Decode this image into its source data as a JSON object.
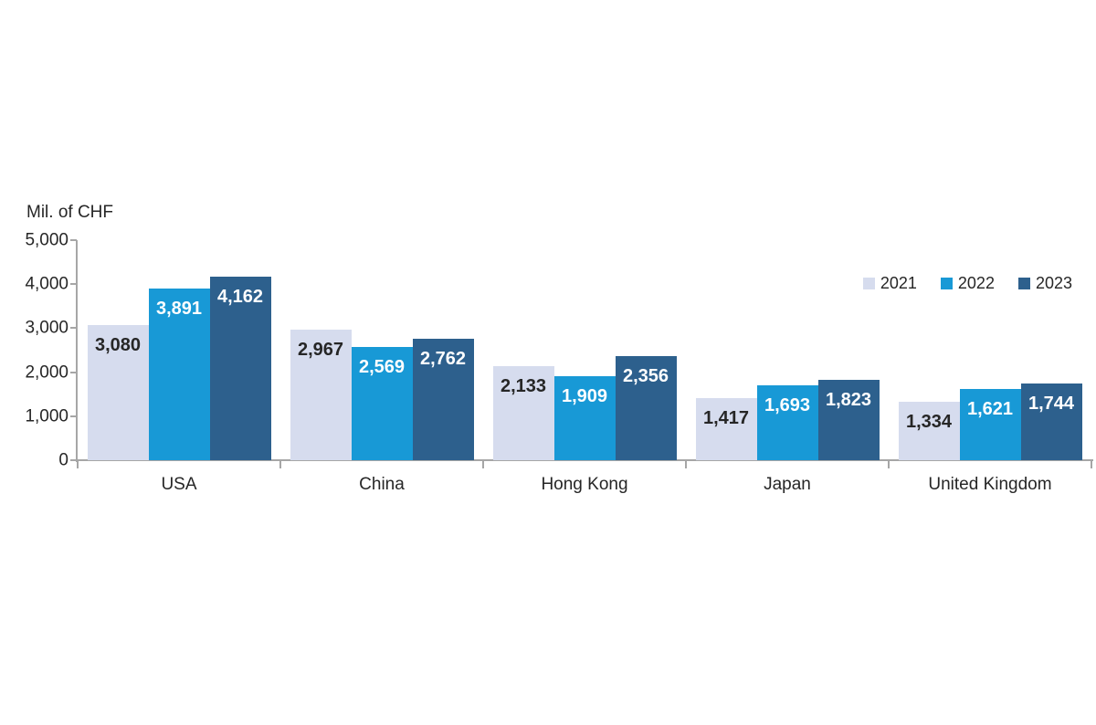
{
  "chart_data": {
    "type": "bar",
    "title": "",
    "unit_label": "Mil. of CHF",
    "categories": [
      "USA",
      "China",
      "Hong Kong",
      "Japan",
      "United Kingdom"
    ],
    "series": [
      {
        "name": "2021",
        "color": "#d6dcee",
        "label_color": "#262626",
        "values": [
          3080,
          2967,
          2133,
          1417,
          1334
        ]
      },
      {
        "name": "2022",
        "color": "#1899d6",
        "label_color": "#ffffff",
        "values": [
          3891,
          2569,
          1909,
          1693,
          1621
        ]
      },
      {
        "name": "2023",
        "color": "#2d608d",
        "label_color": "#ffffff",
        "values": [
          4162,
          2762,
          2356,
          1823,
          1744
        ]
      }
    ],
    "ylim": [
      0,
      5000
    ],
    "yticks": [
      0,
      1000,
      2000,
      3000,
      4000,
      5000
    ],
    "grid": false,
    "legend_position": "top-right",
    "value_labels": "inside-top",
    "axis_color": "#a6a6a6",
    "text_color": "#262626",
    "background_color": "#ffffff"
  }
}
